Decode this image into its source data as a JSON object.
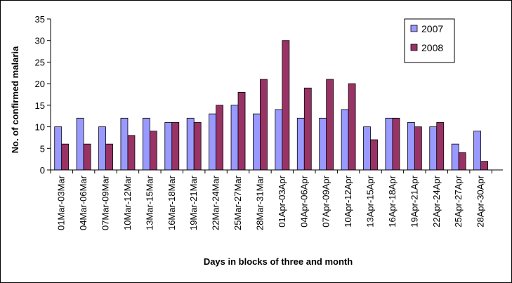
{
  "chart_data": {
    "type": "bar",
    "xlabel": "Days in blocks of three and month",
    "ylabel": "No. of confirmed malaria",
    "ylim": [
      0,
      35
    ],
    "yticks": [
      0,
      5,
      10,
      15,
      20,
      25,
      30,
      35
    ],
    "grid": false,
    "legend_position": "top-right",
    "categories": [
      "01Mar-03Mar",
      "04Mar-06Mar",
      "07Mar-09Mar",
      "10Mar-12Mar",
      "13Mar-15Mar",
      "16Mar-18Mar",
      "19Mar-21Mar",
      "22Mar-24Mar",
      "25Mar-27Mar",
      "28Mar-31Mar",
      "01Apr-03Apr",
      "04Apr-06Apr",
      "07Apr-09Apr",
      "10Apr-12Apr",
      "13Apr-15Apr",
      "16Apr-18Apr",
      "19Apr-21Apr",
      "22Apr-24Apr",
      "25Apr-27Apr",
      "28Apr-30Apr"
    ],
    "series": [
      {
        "name": "2007",
        "color": "#9999FF",
        "values": [
          10,
          12,
          10,
          12,
          12,
          11,
          12,
          13,
          15,
          13,
          14,
          12,
          12,
          14,
          10,
          12,
          11,
          10,
          6,
          9
        ]
      },
      {
        "name": "2008",
        "color": "#993366",
        "values": [
          6,
          6,
          6,
          8,
          9,
          11,
          11,
          15,
          18,
          21,
          30,
          19,
          21,
          20,
          7,
          12,
          10,
          11,
          4,
          2
        ]
      }
    ]
  }
}
